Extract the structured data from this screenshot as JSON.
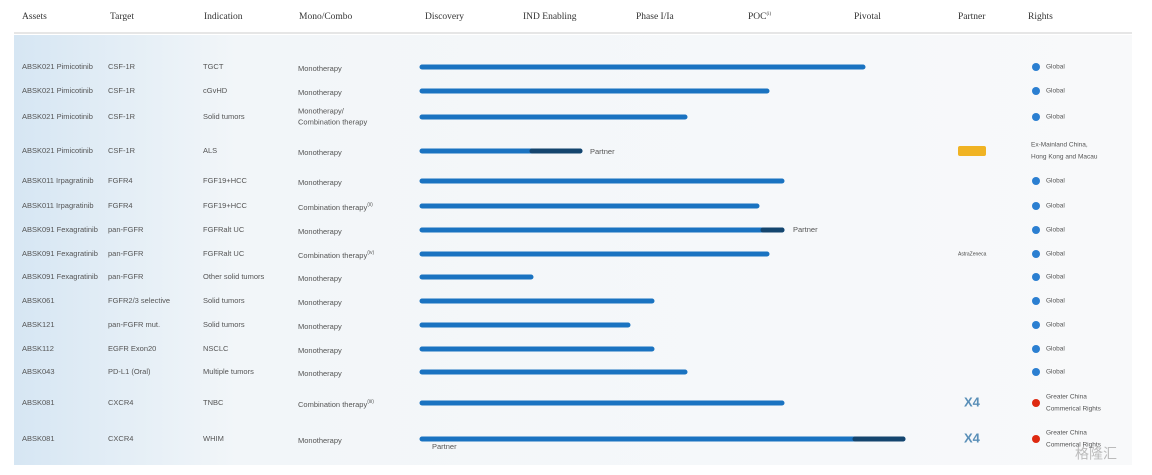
{
  "header": {
    "assets": "Assets",
    "target": "Target",
    "indication": "Indication",
    "mono": "Mono/Combo",
    "discovery": "Discovery",
    "ind": "IND Enabling",
    "phase": "Phase I/Ia",
    "poc": "POC",
    "poc_note": "(i)",
    "pivotal": "Pivotal",
    "partner": "Partner",
    "rights": "Rights"
  },
  "rows": [
    {
      "asset": "ABSK021 Pimicotinib",
      "target": "CSF-1R",
      "indication": "TGCT",
      "mono": [
        "Monotherapy"
      ],
      "rights": [
        "Global"
      ]
    },
    {
      "asset": "ABSK021 Pimicotinib",
      "target": "CSF-1R",
      "indication": "cGvHD",
      "mono": [
        "Monotherapy"
      ],
      "rights": [
        "Global"
      ]
    },
    {
      "asset": "ABSK021 Pimicotinib",
      "target": "CSF-1R",
      "indication": "Solid tumors",
      "mono": [
        "Monotherapy/",
        "Combination therapy"
      ],
      "rights": [
        "Global"
      ]
    },
    {
      "asset": "ABSK021 Pimicotinib",
      "target": "CSF-1R",
      "indication": "ALS",
      "mono": [
        "Monotherapy"
      ],
      "bar_label": "Partner",
      "rights": [
        "Ex-Mainland China,",
        "Hong Kong and Macau"
      ]
    },
    {
      "asset": "ABSK011 Irpagratinib",
      "target": "FGFR4",
      "indication": "FGF19+HCC",
      "mono": [
        "Monotherapy"
      ],
      "rights": [
        "Global"
      ]
    },
    {
      "asset": "ABSK011 Irpagratinib",
      "target": "FGFR4",
      "indication": "FGF19+HCC",
      "mono": [
        "Combination therapy"
      ],
      "note": "(ii)",
      "rights": [
        "Global"
      ]
    },
    {
      "asset": "ABSK091 Fexagratinib",
      "target": "pan-FGFR",
      "indication": "FGFRalt UC",
      "mono": [
        "Monotherapy"
      ],
      "bar_label": "Partner",
      "rights": [
        "Global"
      ]
    },
    {
      "asset": "ABSK091 Fexagratinib",
      "target": "pan-FGFR",
      "indication": "FGFRalt UC",
      "mono": [
        "Combination therapy"
      ],
      "note": "(iv)",
      "partner": "AstraZeneca",
      "rights": [
        "Global"
      ]
    },
    {
      "asset": "ABSK091 Fexagratinib",
      "target": "pan-FGFR",
      "indication": "Other solid tumors",
      "mono": [
        "Monotherapy"
      ],
      "rights": [
        "Global"
      ]
    },
    {
      "asset": "ABSK061",
      "target": "FGFR2/3 selective",
      "indication": "Solid tumors",
      "mono": [
        "Monotherapy"
      ],
      "rights": [
        "Global"
      ]
    },
    {
      "asset": "ABSK121",
      "target": "pan-FGFR mut.",
      "indication": "Solid tumors",
      "mono": [
        "Monotherapy"
      ],
      "rights": [
        "Global"
      ]
    },
    {
      "asset": "ABSK112",
      "target": "EGFR Exon20",
      "indication": "NSCLC",
      "mono": [
        "Monotherapy"
      ],
      "rights": [
        "Global"
      ]
    },
    {
      "asset": "ABSK043",
      "target": "PD-L1 (Oral)",
      "indication": "Multiple tumors",
      "mono": [
        "Monotherapy"
      ],
      "rights": [
        "Global"
      ]
    },
    {
      "asset": "ABSK081",
      "target": "CXCR4",
      "indication": "TNBC",
      "mono": [
        "Combination therapy"
      ],
      "note": "(iii)",
      "partner": "X4",
      "rights": [
        "Greater China",
        "Commerical Rights"
      ]
    },
    {
      "asset": "ABSK081",
      "target": "CXCR4",
      "indication": "WHIM",
      "mono": [
        "Monotherapy"
      ],
      "bar_label": "Partner",
      "partner": "X4",
      "rights": [
        "Greater China",
        "Commerical Rights"
      ]
    }
  ],
  "watermark": "格隆汇"
}
